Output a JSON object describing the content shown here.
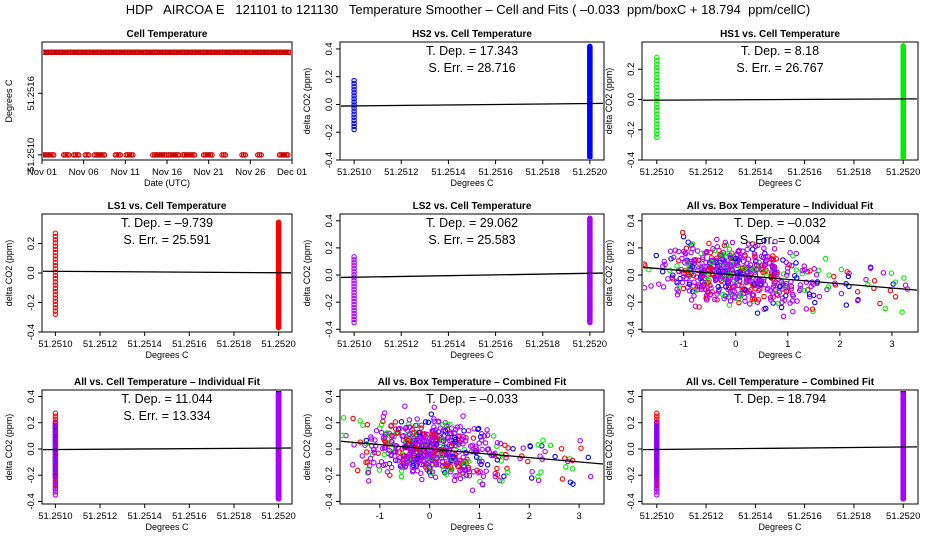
{
  "figure_title": "HDP   AIRCOA E   121101 to 121130   Temperature Smoother – Cell and Fits ( –0.033  ppm/boxC + 18.794  ppm/cellC)",
  "colors": {
    "red": "#ff0000",
    "darkred": "#cc0000",
    "blue": "#0000ff",
    "green": "#00ee00",
    "magenta": "#aa00ff",
    "black": "#000000"
  },
  "chart_data": [
    {
      "type": "scatter",
      "title": "Cell Temperature",
      "xlabel": "Date (UTC)",
      "ylabel": "Degrees C",
      "xlim": [
        0,
        30
      ],
      "ylim": [
        51.25095,
        51.2521
      ],
      "x_ticks": [
        {
          "v": 0,
          "label": "Nov 01"
        },
        {
          "v": 5,
          "label": "Nov 06"
        },
        {
          "v": 10,
          "label": "Nov 11"
        },
        {
          "v": 15,
          "label": "Nov 16"
        },
        {
          "v": 20,
          "label": "Nov 21"
        },
        {
          "v": 25,
          "label": "Nov 26"
        },
        {
          "v": 30,
          "label": "Dec 01"
        }
      ],
      "y_ticks": [
        {
          "v": 51.251,
          "label": "51.2510"
        },
        {
          "v": 51.2516,
          "label": "51.2516"
        }
      ],
      "series": [
        {
          "name": "cell temperature",
          "color": "darkred",
          "high": 51.252,
          "low": 51.251,
          "low_ranges": [
            [
              0,
              1.5
            ],
            [
              2.6,
              3.4
            ],
            [
              3.8,
              4.6
            ],
            [
              5.2,
              5.8
            ],
            [
              6.3,
              7.7
            ],
            [
              8.8,
              9.5
            ],
            [
              10.1,
              10.9
            ],
            [
              13.3,
              14.9
            ],
            [
              15.2,
              16.4
            ],
            [
              16.9,
              18.4
            ],
            [
              19.4,
              20.5
            ],
            [
              21.6,
              22.1
            ],
            [
              24,
              24.5
            ],
            [
              25.9,
              26.3
            ],
            [
              28.5,
              29.5
            ]
          ]
        }
      ]
    },
    {
      "type": "scatter",
      "title": "HS2 vs. Cell Temperature",
      "xlabel": "Degrees C",
      "ylabel": "delta CO2 (ppm)",
      "xlim": [
        51.25094,
        51.25206
      ],
      "ylim": [
        -0.4,
        0.45
      ],
      "x_ticks": [
        {
          "v": 51.251,
          "label": "51.2510"
        },
        {
          "v": 51.2512,
          "label": "51.2512"
        },
        {
          "v": 51.2514,
          "label": "51.2514"
        },
        {
          "v": 51.2516,
          "label": "51.2516"
        },
        {
          "v": 51.2518,
          "label": "51.2518"
        },
        {
          "v": 51.252,
          "label": "51.2520"
        }
      ],
      "y_ticks": [
        {
          "v": -0.4,
          "label": "-0.4"
        },
        {
          "v": -0.2,
          "label": "-0.2"
        },
        {
          "v": 0,
          "label": "0.0"
        },
        {
          "v": 0.2,
          "label": "0.2"
        },
        {
          "v": 0.4,
          "label": "0.4"
        }
      ],
      "annotations": [
        "T. Dep. =  17.343",
        "S. Err. =  28.716"
      ],
      "fit": {
        "slope": 17.343,
        "intercept": -0.0115
      },
      "series": [
        {
          "name": "HS2",
          "color": "blue",
          "low_range": [
            -0.18,
            0.18
          ],
          "high_range": [
            -0.38,
            0.42
          ]
        }
      ]
    },
    {
      "type": "scatter",
      "title": "HS1 vs. Cell Temperature",
      "xlabel": "Degrees C",
      "ylabel": "delta CO2 (ppm)",
      "xlim": [
        51.25094,
        51.25206
      ],
      "ylim": [
        -0.4,
        0.38
      ],
      "x_ticks": [
        {
          "v": 51.251,
          "label": "51.2510"
        },
        {
          "v": 51.2512,
          "label": "51.2512"
        },
        {
          "v": 51.2514,
          "label": "51.2514"
        },
        {
          "v": 51.2516,
          "label": "51.2516"
        },
        {
          "v": 51.2518,
          "label": "51.2518"
        },
        {
          "v": 51.252,
          "label": "51.2520"
        }
      ],
      "y_ticks": [
        {
          "v": -0.4,
          "label": "-0.4"
        },
        {
          "v": -0.2,
          "label": "-0.2"
        },
        {
          "v": 0,
          "label": "0.0"
        },
        {
          "v": 0.2,
          "label": "0.2"
        }
      ],
      "annotations": [
        "T. Dep. =  8.18",
        "S. Err. =  26.767"
      ],
      "fit": {
        "slope": 8.18,
        "intercept": -0.005
      },
      "series": [
        {
          "name": "HS1",
          "color": "green",
          "low_range": [
            -0.25,
            0.28
          ],
          "high_range": [
            -0.39,
            0.36
          ]
        }
      ]
    },
    {
      "type": "scatter",
      "title": "LS1 vs. Cell Temperature",
      "xlabel": "Degrees C",
      "ylabel": "delta CO2 (ppm)",
      "xlim": [
        51.25094,
        51.25206
      ],
      "ylim": [
        -0.4,
        0.4
      ],
      "x_ticks": [
        {
          "v": 51.251,
          "label": "51.2510"
        },
        {
          "v": 51.2512,
          "label": "51.2512"
        },
        {
          "v": 51.2514,
          "label": "51.2514"
        },
        {
          "v": 51.2516,
          "label": "51.2516"
        },
        {
          "v": 51.2518,
          "label": "51.2518"
        },
        {
          "v": 51.252,
          "label": "51.2520"
        }
      ],
      "y_ticks": [
        {
          "v": -0.4,
          "label": "-0.4"
        },
        {
          "v": -0.2,
          "label": "-0.2"
        },
        {
          "v": 0,
          "label": "0.0"
        },
        {
          "v": 0.2,
          "label": "0.2"
        }
      ],
      "annotations": [
        "T. Dep. =  –9.739",
        "S. Err. =  25.591"
      ],
      "fit": {
        "slope": -9.739,
        "intercept": 0.012
      },
      "series": [
        {
          "name": "LS1",
          "color": "red",
          "low_range": [
            -0.28,
            0.28
          ],
          "high_range": [
            -0.37,
            0.35
          ]
        }
      ]
    },
    {
      "type": "scatter",
      "title": "LS2 vs. Cell Temperature",
      "xlabel": "Degrees C",
      "ylabel": "delta CO2 (ppm)",
      "xlim": [
        51.25094,
        51.25206
      ],
      "ylim": [
        -0.42,
        0.45
      ],
      "x_ticks": [
        {
          "v": 51.251,
          "label": "51.2510"
        },
        {
          "v": 51.2512,
          "label": "51.2512"
        },
        {
          "v": 51.2514,
          "label": "51.2514"
        },
        {
          "v": 51.2516,
          "label": "51.2516"
        },
        {
          "v": 51.2518,
          "label": "51.2518"
        },
        {
          "v": 51.252,
          "label": "51.2520"
        }
      ],
      "y_ticks": [
        {
          "v": -0.4,
          "label": "-0.4"
        },
        {
          "v": -0.2,
          "label": "-0.2"
        },
        {
          "v": 0,
          "label": "0.0"
        },
        {
          "v": 0.2,
          "label": "0.2"
        },
        {
          "v": 0.4,
          "label": "0.4"
        }
      ],
      "annotations": [
        "T. Dep. =  29.062",
        "S. Err. =  25.583"
      ],
      "fit": {
        "slope": 29.062,
        "intercept": -0.018
      },
      "series": [
        {
          "name": "LS2",
          "color": "magenta",
          "low_range": [
            -0.35,
            0.15
          ],
          "high_range": [
            -0.35,
            0.42
          ]
        }
      ]
    },
    {
      "type": "scatter",
      "title": "All vs. Box Temperature – Individual Fit",
      "xlabel": "Degrees C",
      "ylabel": "delta CO2 (ppm)",
      "xlim": [
        -1.8,
        3.5
      ],
      "ylim": [
        -0.42,
        0.45
      ],
      "x_ticks": [
        {
          "v": -1,
          "label": "-1"
        },
        {
          "v": 0,
          "label": "0"
        },
        {
          "v": 1,
          "label": "1"
        },
        {
          "v": 2,
          "label": "2"
        },
        {
          "v": 3,
          "label": "3"
        }
      ],
      "y_ticks": [
        {
          "v": -0.4,
          "label": "-0.4"
        },
        {
          "v": -0.2,
          "label": "-0.2"
        },
        {
          "v": 0,
          "label": "0.0"
        },
        {
          "v": 0.2,
          "label": "0.2"
        },
        {
          "v": 0.4,
          "label": "0.4"
        }
      ],
      "annotations": [
        "T. Dep. =  –0.032",
        "S. Err. =  0.004"
      ],
      "fit": {
        "slope": -0.032,
        "intercept": 0.0
      },
      "series": [
        {
          "name": "blue",
          "color": "blue"
        },
        {
          "name": "green",
          "color": "green"
        },
        {
          "name": "red",
          "color": "red"
        },
        {
          "name": "magenta",
          "color": "magenta"
        }
      ]
    },
    {
      "type": "scatter",
      "title": "All vs. Cell Temperature – Individual Fit",
      "xlabel": "Degrees C",
      "ylabel": "delta CO2 (ppm)",
      "xlim": [
        51.25094,
        51.25206
      ],
      "ylim": [
        -0.42,
        0.45
      ],
      "x_ticks": [
        {
          "v": 51.251,
          "label": "51.2510"
        },
        {
          "v": 51.2512,
          "label": "51.2512"
        },
        {
          "v": 51.2514,
          "label": "51.2514"
        },
        {
          "v": 51.2516,
          "label": "51.2516"
        },
        {
          "v": 51.2518,
          "label": "51.2518"
        },
        {
          "v": 51.252,
          "label": "51.2520"
        }
      ],
      "y_ticks": [
        {
          "v": -0.4,
          "label": "-0.4"
        },
        {
          "v": -0.2,
          "label": "-0.2"
        },
        {
          "v": 0,
          "label": "0.0"
        },
        {
          "v": 0.2,
          "label": "0.2"
        },
        {
          "v": 0.4,
          "label": "0.4"
        }
      ],
      "annotations": [
        "T. Dep. =  11.044",
        "S. Err. =  13.334"
      ],
      "fit": {
        "slope": 11.044,
        "intercept": -0.005
      },
      "series": [
        {
          "name": "red",
          "color": "red",
          "low_range": [
            -0.3,
            0.28
          ],
          "high_range": [
            -0.38,
            0.42
          ]
        },
        {
          "name": "blue",
          "color": "blue",
          "low_range": [
            -0.2,
            0.2
          ],
          "high_range": [
            -0.38,
            0.44
          ]
        },
        {
          "name": "magenta",
          "color": "magenta",
          "low_range": [
            -0.35,
            0.2
          ],
          "high_range": [
            -0.38,
            0.42
          ]
        }
      ]
    },
    {
      "type": "scatter",
      "title": "All vs. Box Temperature – Combined Fit",
      "xlabel": "Degrees C",
      "ylabel": "delta CO2 (ppm)",
      "xlim": [
        -1.8,
        3.5
      ],
      "ylim": [
        -0.42,
        0.45
      ],
      "x_ticks": [
        {
          "v": -1,
          "label": "-1"
        },
        {
          "v": 0,
          "label": "0"
        },
        {
          "v": 1,
          "label": "1"
        },
        {
          "v": 2,
          "label": "2"
        },
        {
          "v": 3,
          "label": "3"
        }
      ],
      "y_ticks": [
        {
          "v": -0.4,
          "label": "-0.4"
        },
        {
          "v": -0.2,
          "label": "-0.2"
        },
        {
          "v": 0,
          "label": "0.0"
        },
        {
          "v": 0.2,
          "label": "0.2"
        },
        {
          "v": 0.4,
          "label": "0.4"
        }
      ],
      "annotations": [
        "T. Dep. =  –0.033"
      ],
      "fit": {
        "slope": -0.033,
        "intercept": 0.0
      },
      "series": [
        {
          "name": "blue",
          "color": "blue"
        },
        {
          "name": "green",
          "color": "green"
        },
        {
          "name": "red",
          "color": "red"
        },
        {
          "name": "magenta",
          "color": "magenta"
        }
      ]
    },
    {
      "type": "scatter",
      "title": "All vs. Cell Temperature – Combined Fit",
      "xlabel": "Degrees C",
      "ylabel": "delta CO2 (ppm)",
      "xlim": [
        51.25094,
        51.25206
      ],
      "ylim": [
        -0.42,
        0.45
      ],
      "x_ticks": [
        {
          "v": 51.251,
          "label": "51.2510"
        },
        {
          "v": 51.2512,
          "label": "51.2512"
        },
        {
          "v": 51.2514,
          "label": "51.2514"
        },
        {
          "v": 51.2516,
          "label": "51.2516"
        },
        {
          "v": 51.2518,
          "label": "51.2518"
        },
        {
          "v": 51.252,
          "label": "51.2520"
        }
      ],
      "y_ticks": [
        {
          "v": -0.4,
          "label": "-0.4"
        },
        {
          "v": -0.2,
          "label": "-0.2"
        },
        {
          "v": 0,
          "label": "0.0"
        },
        {
          "v": 0.2,
          "label": "0.2"
        },
        {
          "v": 0.4,
          "label": "0.4"
        }
      ],
      "annotations": [
        "T. Dep. =  18.794"
      ],
      "fit": {
        "slope": 18.794,
        "intercept": -0.005
      },
      "series": [
        {
          "name": "red",
          "color": "red",
          "low_range": [
            -0.3,
            0.28
          ],
          "high_range": [
            -0.38,
            0.42
          ]
        },
        {
          "name": "blue",
          "color": "blue",
          "low_range": [
            -0.2,
            0.2
          ],
          "high_range": [
            -0.38,
            0.44
          ]
        },
        {
          "name": "magenta",
          "color": "magenta",
          "low_range": [
            -0.35,
            0.2
          ],
          "high_range": [
            -0.38,
            0.42
          ]
        }
      ]
    }
  ]
}
